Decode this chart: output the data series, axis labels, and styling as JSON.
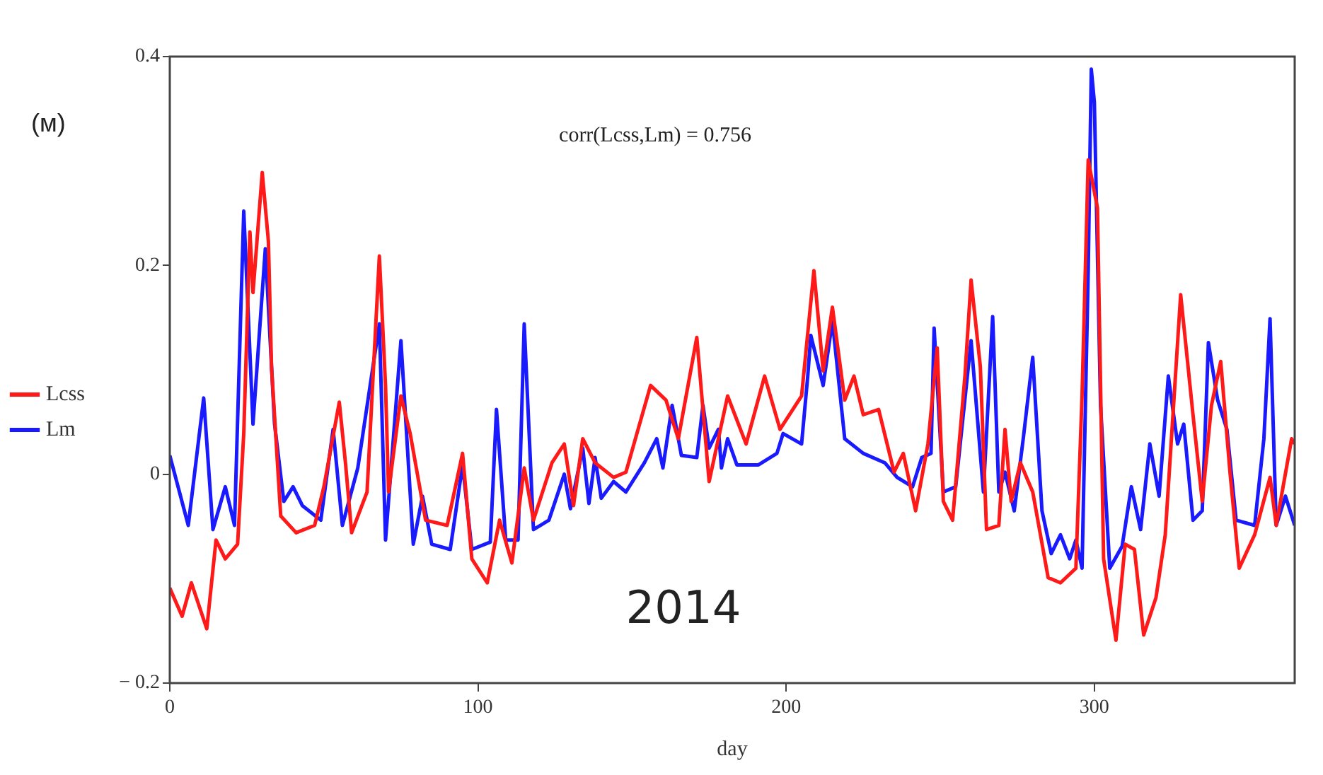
{
  "chart_data": {
    "type": "line",
    "xlabel": "day",
    "ylabel": "(м)",
    "annotations": [
      "corr(Lcss,Lm) = 0.756",
      "2014"
    ],
    "xlim": [
      0,
      365
    ],
    "xticks": [
      0,
      100,
      200,
      300
    ],
    "ylim": [
      -0.2,
      0.4
    ],
    "yticks": [
      {
        "value": -0.2,
        "label": "− 0.2"
      },
      0,
      0.2,
      0.4
    ],
    "grid": false,
    "legend": "left",
    "marker": "none",
    "line_style": "solid",
    "series": [
      {
        "name": "Lcss",
        "color": "#ff1a1a",
        "x": [
          0,
          4,
          7,
          12,
          15,
          18,
          22,
          24,
          26,
          27,
          30,
          32,
          33,
          36,
          41,
          47,
          50,
          55,
          57,
          59,
          64,
          68,
          70,
          71,
          75,
          78,
          83,
          90,
          95,
          98,
          103,
          107,
          111,
          115,
          118,
          124,
          128,
          131,
          134,
          138,
          144,
          148,
          156,
          161,
          165,
          171,
          175,
          181,
          187,
          193,
          198,
          205,
          209,
          212,
          215,
          219,
          222,
          225,
          230,
          235,
          238,
          242,
          246,
          249,
          251,
          254,
          258,
          260,
          263,
          265,
          269,
          271,
          273,
          276,
          280,
          285,
          289,
          294,
          296,
          298,
          301,
          303,
          307,
          310,
          313,
          316,
          320,
          323,
          328,
          332,
          335,
          338,
          341,
          344,
          347,
          352,
          357,
          359,
          364,
          365
        ],
        "values": [
          -0.109,
          -0.136,
          -0.104,
          -0.148,
          -0.063,
          -0.081,
          -0.067,
          0.039,
          0.232,
          0.174,
          0.289,
          0.223,
          0.103,
          -0.04,
          -0.056,
          -0.049,
          -0.012,
          0.069,
          0.011,
          -0.056,
          -0.017,
          0.209,
          0.085,
          -0.017,
          0.075,
          0.039,
          -0.044,
          -0.049,
          0.02,
          -0.081,
          -0.104,
          -0.044,
          -0.085,
          0.006,
          -0.044,
          0.011,
          0.029,
          -0.03,
          0.034,
          0.011,
          -0.003,
          0.002,
          0.085,
          0.071,
          0.034,
          0.131,
          -0.007,
          0.075,
          0.029,
          0.094,
          0.043,
          0.075,
          0.195,
          0.099,
          0.16,
          0.071,
          0.094,
          0.057,
          0.062,
          0.002,
          0.02,
          -0.035,
          0.029,
          0.121,
          -0.026,
          -0.044,
          0.094,
          0.186,
          0.103,
          -0.053,
          -0.049,
          0.043,
          -0.026,
          0.011,
          -0.017,
          -0.099,
          -0.104,
          -0.09,
          0.075,
          0.301,
          0.255,
          -0.081,
          -0.159,
          -0.067,
          -0.072,
          -0.154,
          -0.118,
          -0.058,
          0.172,
          0.057,
          -0.026,
          0.066,
          0.108,
          0.002,
          -0.09,
          -0.058,
          -0.003,
          -0.049,
          0.034,
          0.029
        ]
      },
      {
        "name": "Lm",
        "color": "#1a1aff",
        "x": [
          0,
          6,
          11,
          14,
          18,
          21,
          24,
          27,
          31,
          34,
          37,
          40,
          43,
          49,
          53,
          56,
          61,
          68,
          70,
          75,
          79,
          82,
          85,
          91,
          95,
          98,
          104,
          106,
          109,
          113,
          115,
          118,
          123,
          128,
          130,
          134,
          136,
          138,
          140,
          144,
          148,
          154,
          158,
          160,
          163,
          166,
          171,
          173,
          175,
          178,
          179,
          181,
          184,
          191,
          197,
          199,
          205,
          207,
          208,
          212,
          215,
          219,
          225,
          232,
          236,
          241,
          244,
          247,
          248,
          251,
          255,
          260,
          264,
          267,
          269,
          271,
          274,
          277,
          280,
          283,
          286,
          289,
          292,
          294,
          296,
          298,
          299,
          300,
          302,
          305,
          309,
          312,
          315,
          318,
          321,
          324,
          327,
          329,
          332,
          335,
          337,
          340,
          343,
          346,
          352,
          355,
          357,
          359,
          362,
          365
        ],
        "values": [
          0.018,
          -0.049,
          0.073,
          -0.053,
          -0.012,
          -0.049,
          0.252,
          0.048,
          0.216,
          0.048,
          -0.026,
          -0.012,
          -0.03,
          -0.044,
          0.043,
          -0.049,
          0.006,
          0.144,
          -0.063,
          0.128,
          -0.067,
          -0.021,
          -0.067,
          -0.072,
          0.009,
          -0.072,
          -0.065,
          0.062,
          -0.063,
          -0.063,
          0.144,
          -0.053,
          -0.044,
          0,
          -0.033,
          0.025,
          -0.028,
          0.016,
          -0.023,
          -0.007,
          -0.017,
          0.011,
          0.034,
          0.006,
          0.066,
          0.018,
          0.016,
          0.066,
          0.025,
          0.043,
          0.006,
          0.034,
          0.009,
          0.009,
          0.02,
          0.039,
          0.029,
          0.094,
          0.133,
          0.085,
          0.147,
          0.034,
          0.02,
          0.011,
          -0.003,
          -0.012,
          0.016,
          0.02,
          0.14,
          -0.017,
          -0.012,
          0.128,
          -0.017,
          0.151,
          -0.017,
          0.002,
          -0.035,
          0.036,
          0.112,
          -0.035,
          -0.076,
          -0.058,
          -0.081,
          -0.063,
          -0.09,
          0.195,
          0.388,
          0.356,
          0.066,
          -0.09,
          -0.069,
          -0.012,
          -0.053,
          0.029,
          -0.021,
          0.094,
          0.029,
          0.048,
          -0.044,
          -0.035,
          0.126,
          0.071,
          0.043,
          -0.044,
          -0.049,
          0.034,
          0.149,
          -0.049,
          -0.021,
          -0.049
        ]
      }
    ]
  }
}
